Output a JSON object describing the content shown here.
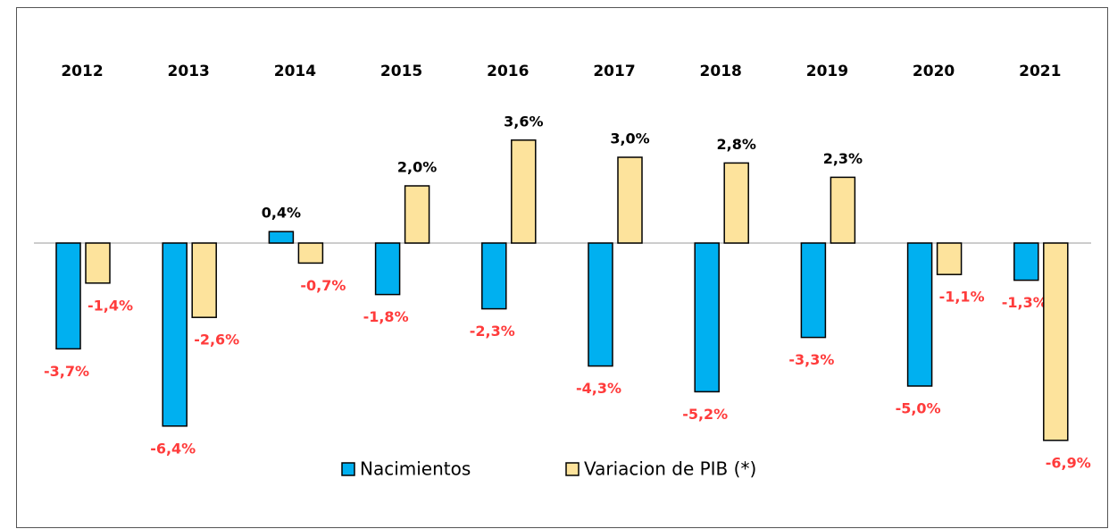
{
  "chart_data": {
    "type": "bar",
    "categories": [
      "2012",
      "2013",
      "2014",
      "2015",
      "2016",
      "2017",
      "2018",
      "2019",
      "2020",
      "2021"
    ],
    "series": [
      {
        "name": "Nacimientos",
        "color": "#00b0f0",
        "values": [
          -3.7,
          -6.4,
          0.4,
          -1.8,
          -2.3,
          -4.3,
          -5.2,
          -3.3,
          -5.0,
          -1.3
        ],
        "value_labels": [
          "-3,7%",
          "-6,4%",
          "0,4%",
          "-1,8%",
          "-2,3%",
          "-4,3%",
          "-5,2%",
          "-3,3%",
          "-5,0%",
          "-1,3%"
        ]
      },
      {
        "name": "Variacion de PIB (*)",
        "color": "#fde39c",
        "values": [
          -1.4,
          -2.6,
          -0.7,
          2.0,
          3.6,
          3.0,
          2.8,
          2.3,
          -1.1,
          -6.9
        ],
        "value_labels": [
          "-1,4%",
          "-2,6%",
          "-0,7%",
          "2,0%",
          "3,6%",
          "3,0%",
          "2,8%",
          "2,3%",
          "-1,1%",
          "-6,9%"
        ]
      }
    ],
    "legend": "bottom"
  }
}
